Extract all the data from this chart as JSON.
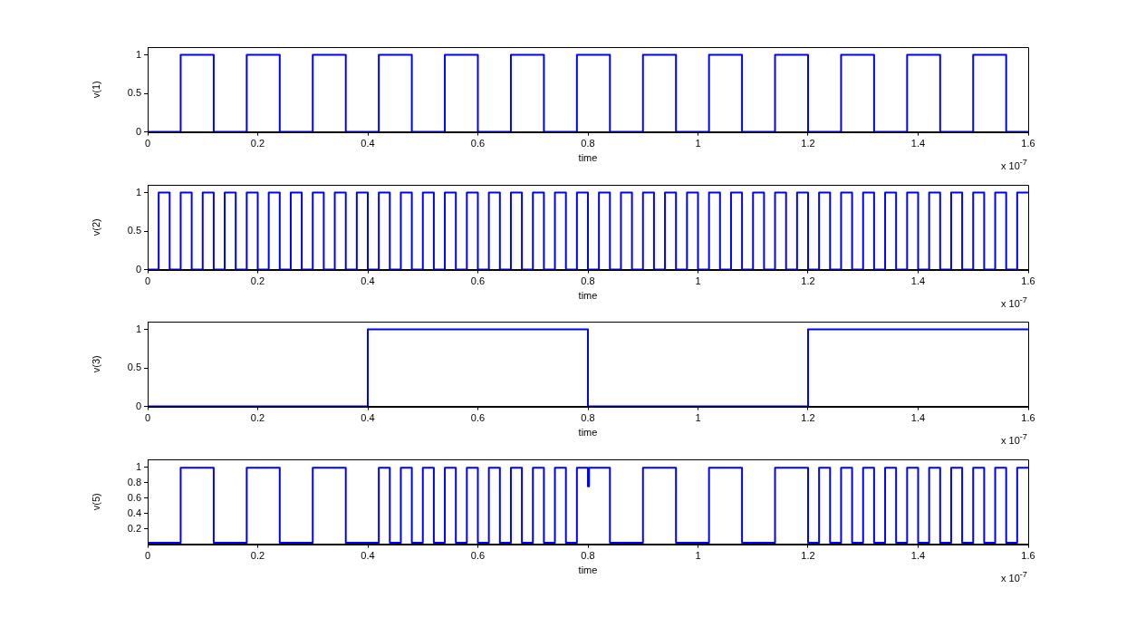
{
  "chart_data": [
    {
      "type": "step",
      "xlabel": "time",
      "ylabel": "v(1)",
      "annotations": [
        "x 10$^{-7}$"
      ],
      "xlim": [
        0,
        1.6
      ],
      "xticks": [
        0,
        0.2,
        0.4,
        0.6,
        0.8,
        1,
        1.2,
        1.4,
        1.6
      ],
      "ylim": [
        0,
        1.1
      ],
      "yticks": [
        0,
        0.5,
        1
      ],
      "grid": false,
      "legend": false,
      "series": [
        {
          "color": "#0000ff",
          "x": [
            0,
            0.06,
            0.12,
            0.18,
            0.24,
            0.3,
            0.36,
            0.42,
            0.48,
            0.54,
            0.6,
            0.66,
            0.72,
            0.78,
            0.84,
            0.9,
            0.96,
            1.02,
            1.08,
            1.14,
            1.2,
            1.26,
            1.32,
            1.38,
            1.44,
            1.5,
            1.56,
            1.6
          ],
          "values": [
            0,
            1,
            0,
            1,
            0,
            1,
            0,
            1,
            0,
            1,
            0,
            1,
            0,
            1,
            0,
            1,
            0,
            1,
            0,
            1,
            0,
            1,
            0,
            1,
            0,
            1,
            0,
            0
          ]
        }
      ]
    },
    {
      "type": "step",
      "xlabel": "time",
      "ylabel": "v(2)",
      "annotations": [
        "x 10$^{-7}$"
      ],
      "xlim": [
        0,
        1.6
      ],
      "xticks": [
        0,
        0.2,
        0.4,
        0.6,
        0.8,
        1,
        1.2,
        1.4,
        1.6
      ],
      "ylim": [
        0,
        1.1
      ],
      "yticks": [
        0,
        0.5,
        1
      ],
      "grid": false,
      "legend": false,
      "series": [
        {
          "color": "#0000ff",
          "x": [
            0,
            0.02,
            0.04,
            0.06,
            0.08,
            0.1,
            0.12,
            0.14,
            0.16,
            0.18,
            0.2,
            0.22,
            0.24,
            0.26,
            0.28,
            0.3,
            0.32,
            0.34,
            0.36,
            0.38,
            0.4,
            0.42,
            0.44,
            0.46,
            0.48,
            0.5,
            0.52,
            0.54,
            0.56,
            0.58,
            0.6,
            0.62,
            0.64,
            0.66,
            0.68,
            0.7,
            0.72,
            0.74,
            0.76,
            0.78,
            0.8,
            0.82,
            0.84,
            0.86,
            0.88,
            0.9,
            0.92,
            0.94,
            0.96,
            0.98,
            1.0,
            1.02,
            1.04,
            1.06,
            1.08,
            1.1,
            1.12,
            1.14,
            1.16,
            1.18,
            1.2,
            1.22,
            1.24,
            1.26,
            1.28,
            1.3,
            1.32,
            1.34,
            1.36,
            1.38,
            1.4,
            1.42,
            1.44,
            1.46,
            1.48,
            1.5,
            1.52,
            1.54,
            1.56,
            1.58,
            1.6
          ],
          "values": [
            0,
            1,
            0,
            1,
            0,
            1,
            0,
            1,
            0,
            1,
            0,
            1,
            0,
            1,
            0,
            1,
            0,
            1,
            0,
            1,
            0,
            1,
            0,
            1,
            0,
            1,
            0,
            1,
            0,
            1,
            0,
            1,
            0,
            1,
            0,
            1,
            0,
            1,
            0,
            1,
            0,
            1,
            0,
            1,
            0,
            1,
            0,
            1,
            0,
            1,
            0,
            1,
            0,
            1,
            0,
            1,
            0,
            1,
            0,
            1,
            0,
            1,
            0,
            1,
            0,
            1,
            0,
            1,
            0,
            1,
            0,
            1,
            0,
            1,
            0,
            1,
            0,
            1,
            0,
            1,
            1
          ]
        }
      ]
    },
    {
      "type": "step",
      "xlabel": "time",
      "ylabel": "v(3)",
      "annotations": [
        "x 10$^{-7}$"
      ],
      "xlim": [
        0,
        1.6
      ],
      "xticks": [
        0,
        0.2,
        0.4,
        0.6,
        0.8,
        1,
        1.2,
        1.4,
        1.6
      ],
      "ylim": [
        0,
        1.1
      ],
      "yticks": [
        0,
        0.5,
        1
      ],
      "grid": false,
      "legend": false,
      "series": [
        {
          "color": "#0000ff",
          "x": [
            0,
            0.4,
            0.8,
            1.2,
            1.6
          ],
          "values": [
            0,
            1,
            0,
            1,
            1
          ]
        }
      ]
    },
    {
      "type": "step",
      "xlabel": "time",
      "ylabel": "v(5)",
      "annotations": [
        "x 10$^{-7}$"
      ],
      "xlim": [
        0,
        1.6
      ],
      "xticks": [
        0,
        0.2,
        0.4,
        0.6,
        0.8,
        1,
        1.2,
        1.4,
        1.6
      ],
      "ylim": [
        0,
        1.1
      ],
      "yticks": [
        0.2,
        0.4,
        0.6,
        0.8,
        1
      ],
      "grid": false,
      "legend": false,
      "series": [
        {
          "color": "#0000ff",
          "x": [
            0,
            0.06,
            0.12,
            0.18,
            0.24,
            0.3,
            0.36,
            0.42,
            0.44,
            0.46,
            0.48,
            0.5,
            0.52,
            0.54,
            0.56,
            0.58,
            0.6,
            0.62,
            0.64,
            0.66,
            0.68,
            0.7,
            0.72,
            0.74,
            0.76,
            0.78,
            0.8,
            0.802,
            0.84,
            0.9,
            0.96,
            1.02,
            1.08,
            1.14,
            1.2,
            1.22,
            1.24,
            1.26,
            1.28,
            1.3,
            1.32,
            1.34,
            1.36,
            1.38,
            1.4,
            1.42,
            1.44,
            1.46,
            1.48,
            1.5,
            1.52,
            1.54,
            1.56,
            1.58,
            1.6
          ],
          "values": [
            0.02,
            0.99,
            0.02,
            0.99,
            0.02,
            0.99,
            0.02,
            0.99,
            0.02,
            0.99,
            0.02,
            0.99,
            0.02,
            0.99,
            0.02,
            0.99,
            0.02,
            0.99,
            0.02,
            0.99,
            0.02,
            0.99,
            0.02,
            0.99,
            0.02,
            0.99,
            0.75,
            0.99,
            0.02,
            0.99,
            0.02,
            0.99,
            0.02,
            0.99,
            0.02,
            0.99,
            0.02,
            0.99,
            0.02,
            0.99,
            0.02,
            0.99,
            0.02,
            0.99,
            0.02,
            0.99,
            0.02,
            0.99,
            0.02,
            0.99,
            0.02,
            0.99,
            0.02,
            0.99,
            0.99
          ]
        }
      ]
    }
  ]
}
